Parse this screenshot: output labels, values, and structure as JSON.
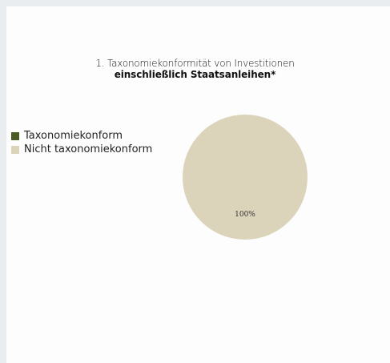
{
  "chart_data": {
    "type": "pie",
    "title": "1. Taxonomiekonformität von Investitionen",
    "subtitle": "einschließlich Staatsanleihen*",
    "legend_position": "left",
    "series": [
      {
        "name": "Taxonomiekonform",
        "value": 0,
        "color": "#4a5a23"
      },
      {
        "name": "Nicht taxonomiekonform",
        "value": 100,
        "color": "#dcd3bb"
      }
    ],
    "data_labels": [
      "",
      "100%"
    ]
  }
}
